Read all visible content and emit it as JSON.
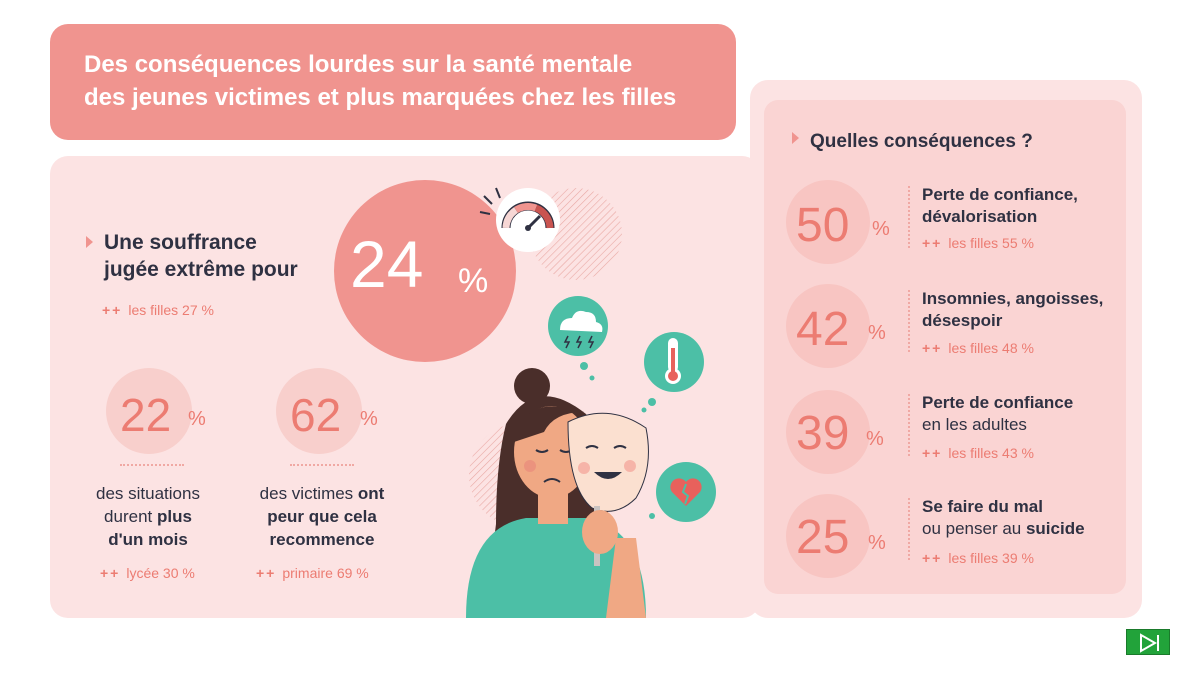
{
  "title": {
    "line1": "Des conséquences lourdes sur la santé mentale",
    "line2": "des jeunes victimes et plus marquées chez les filles"
  },
  "main_stat": {
    "label_line1": "Une souffrance",
    "label_line2": "jugée extrême pour",
    "value": "24",
    "unit": "%",
    "girls_label": "les filles 27 %",
    "plus": "++"
  },
  "stats": [
    {
      "value": "22",
      "unit": "%",
      "desc_plain1": "des situations",
      "desc_plain2": "durent ",
      "desc_bold2": "plus",
      "desc_bold3": "d'un mois",
      "plus": "++",
      "note": "lycée 30 %"
    },
    {
      "value": "62",
      "unit": "%",
      "desc_plain1": "des victimes ",
      "desc_bold1": "ont",
      "desc_bold2": "peur que cela",
      "desc_bold3": "recommence",
      "plus": "++",
      "note": "primaire 69 %"
    }
  ],
  "consequences": {
    "heading": "Quelles conséquences ?",
    "items": [
      {
        "value": "50",
        "unit": "%",
        "bold1": "Perte de confiance,",
        "bold2": "dévalorisation",
        "plus": "++",
        "girls": "les filles 55 %"
      },
      {
        "value": "42",
        "unit": "%",
        "bold1": "Insomnies, angoisses,",
        "bold2": "désespoir",
        "plus": "++",
        "girls": "les filles 48 %"
      },
      {
        "value": "39",
        "unit": "%",
        "bold1": "Perte de confiance",
        "plain2": "en les adultes",
        "plus": "++",
        "girls": "les filles 43 %"
      },
      {
        "value": "25",
        "unit": "%",
        "bold1": "Se faire du mal",
        "plain2": "ou penser au ",
        "bold2b": "suicide",
        "plus": "++",
        "girls": "les filles 39 %"
      }
    ]
  },
  "icons": {
    "gauge": "gauge-icon",
    "storm": "storm-cloud-icon",
    "thermometer": "thermometer-icon",
    "broken_heart": "broken-heart-icon",
    "next": "next-slide-icon"
  },
  "colors": {
    "accent": "#f0948f",
    "accent_text": "#ec7c72",
    "panel": "#fce3e3",
    "teal": "#4cbfa6",
    "next_button": "#22a33a"
  }
}
